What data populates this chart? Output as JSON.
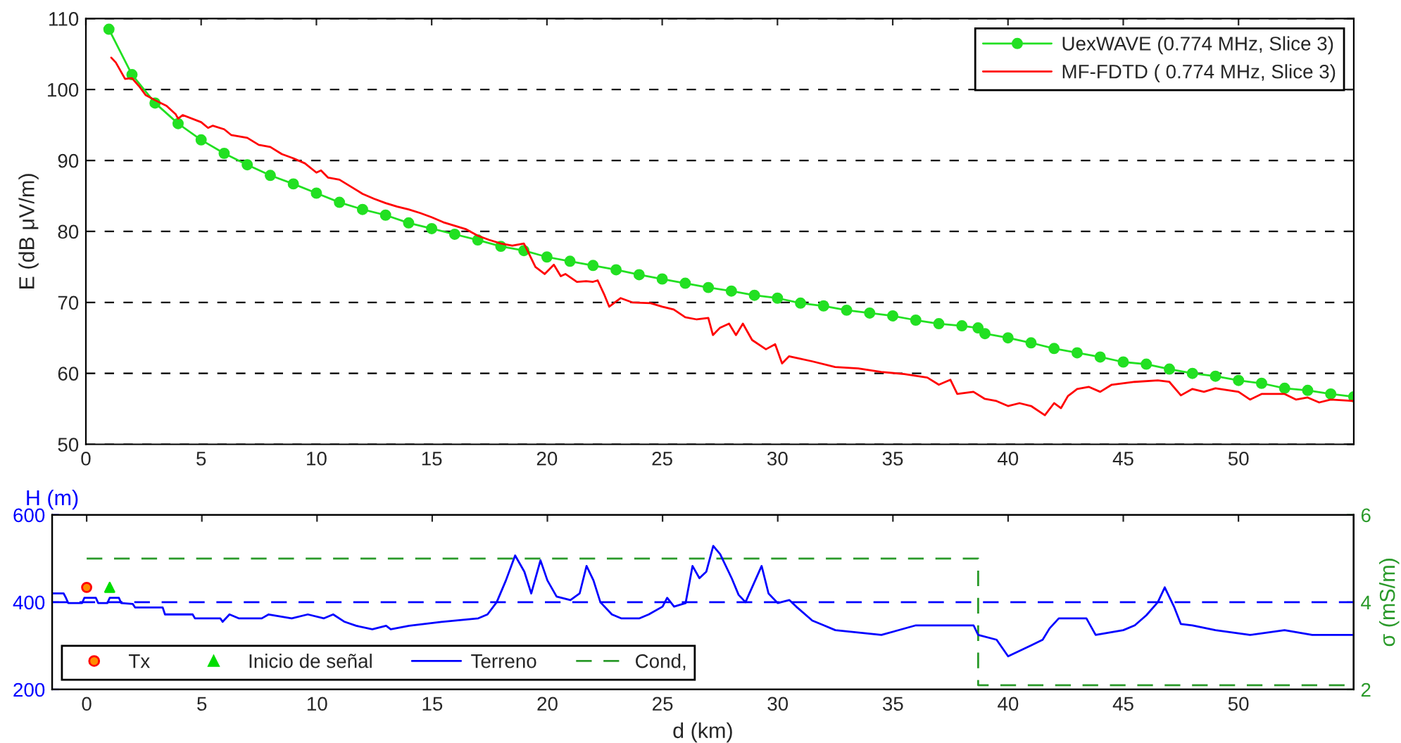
{
  "chart_data": [
    {
      "type": "line",
      "ylabel": "E (dB μV/m)",
      "xlim": [
        0,
        55
      ],
      "ylim": [
        50,
        110
      ],
      "xticks": [
        0,
        5,
        10,
        15,
        20,
        25,
        30,
        35,
        40,
        45,
        50
      ],
      "yticks": [
        50,
        60,
        70,
        80,
        90,
        100,
        110
      ],
      "grid": "y",
      "legend": "top right",
      "series": [
        {
          "name": "UexWAVE (0.774 MHz, Slice 3)",
          "color": "#22e022",
          "marker": "circle",
          "x": [
            1,
            2,
            3,
            4,
            5,
            6,
            7,
            8,
            9,
            10,
            11,
            12,
            13,
            14,
            15,
            16,
            17,
            18,
            19,
            20,
            21,
            22,
            23,
            24,
            25,
            26,
            27,
            28,
            29,
            30,
            31,
            32,
            33,
            34,
            35,
            36,
            37,
            38,
            38.7,
            39,
            40,
            41,
            42,
            43,
            44,
            45,
            46,
            47,
            48,
            49,
            50,
            51,
            52,
            53,
            54,
            55
          ],
          "values": [
            108.5,
            102.1,
            98.1,
            95.2,
            92.9,
            91.0,
            89.4,
            87.9,
            86.7,
            85.4,
            84.1,
            83.1,
            82.3,
            81.2,
            80.4,
            79.6,
            78.8,
            77.9,
            77.3,
            76.4,
            75.8,
            75.2,
            74.6,
            73.9,
            73.3,
            72.7,
            72.1,
            71.6,
            71.0,
            70.6,
            69.9,
            69.5,
            68.9,
            68.5,
            68.1,
            67.5,
            67.0,
            66.7,
            66.4,
            65.6,
            65.0,
            64.3,
            63.5,
            62.9,
            62.3,
            61.6,
            61.3,
            60.6,
            60.0,
            59.6,
            59.0,
            58.6,
            57.9,
            57.6,
            57.1,
            56.7
          ]
        },
        {
          "name": "MF-FDTD ( 0.774 MHz, Slice 3)",
          "color": "#ff0000",
          "marker": "none",
          "x": [
            1.1,
            1.3,
            1.7,
            2.0,
            2.3,
            2.6,
            3.0,
            3.5,
            3.9,
            4.0,
            4.2,
            5.0,
            5.3,
            5.5,
            6.0,
            6.3,
            7.0,
            7.5,
            8.0,
            8.5,
            9.0,
            9.5,
            10.0,
            10.2,
            10.5,
            11.0,
            11.5,
            12.0,
            12.5,
            13.0,
            13.5,
            14.0,
            14.5,
            15.0,
            15.5,
            16.0,
            16.5,
            17.0,
            17.5,
            18.0,
            18.5,
            19.0,
            19.2,
            19.5,
            19.9,
            20.3,
            20.6,
            20.8,
            21.3,
            21.7,
            22.0,
            22.2,
            22.5,
            22.7,
            23.2,
            23.7,
            24.5,
            25.0,
            25.5,
            26.0,
            26.5,
            27.0,
            27.2,
            27.5,
            27.9,
            28.2,
            28.5,
            28.9,
            29.5,
            29.9,
            30.2,
            30.5,
            31.5,
            32.5,
            33.5,
            34.5,
            35.5,
            36.5,
            37.0,
            37.5,
            37.8,
            38.5,
            39.0,
            39.5,
            40.0,
            40.5,
            41.0,
            41.6,
            42.0,
            42.3,
            42.6,
            43.0,
            43.5,
            44.0,
            44.5,
            45.5,
            46.5,
            47.0,
            47.5,
            48.0,
            48.5,
            49.0,
            50.0,
            50.5,
            51.0,
            52.0,
            52.5,
            53.0,
            53.5,
            54.0,
            55.0
          ],
          "values": [
            104.5,
            103.8,
            101.5,
            101.6,
            100.5,
            99.2,
            98.5,
            97.7,
            96.5,
            95.9,
            96.4,
            95.4,
            94.6,
            94.9,
            94.4,
            93.6,
            93.2,
            92.2,
            91.9,
            90.9,
            90.3,
            89.6,
            88.3,
            88.6,
            87.6,
            87.3,
            86.3,
            85.3,
            84.6,
            84.0,
            83.5,
            83.1,
            82.6,
            82.0,
            81.3,
            80.8,
            80.3,
            79.4,
            78.8,
            78.3,
            78.0,
            78.3,
            77.0,
            75.0,
            74.0,
            75.3,
            73.7,
            74.0,
            72.9,
            73.0,
            72.9,
            73.1,
            71.0,
            69.4,
            70.6,
            70.0,
            69.9,
            69.4,
            69.0,
            67.9,
            67.6,
            67.8,
            65.4,
            66.4,
            67.0,
            65.4,
            67.0,
            64.7,
            63.4,
            64.1,
            61.4,
            62.4,
            61.7,
            60.9,
            60.7,
            60.2,
            59.9,
            59.4,
            58.4,
            59.1,
            57.1,
            57.4,
            56.4,
            56.1,
            55.4,
            55.8,
            55.4,
            54.1,
            55.8,
            55.1,
            56.8,
            57.8,
            58.1,
            57.4,
            58.4,
            58.8,
            59.0,
            58.8,
            56.9,
            57.8,
            57.4,
            57.9,
            57.4,
            56.3,
            57.1,
            57.1,
            56.3,
            56.6,
            55.9,
            56.3,
            56.1
          ]
        }
      ]
    },
    {
      "type": "line",
      "xlabel": "d (km)",
      "ylabel": "H (m)",
      "y2label": "σ (mS/m)",
      "xlim": [
        -1.5,
        55
      ],
      "ylim": [
        200,
        600
      ],
      "y2lim": [
        2,
        6
      ],
      "xticks": [
        0,
        5,
        10,
        15,
        20,
        25,
        30,
        35,
        40,
        45,
        50
      ],
      "yticks": [
        200,
        400,
        600
      ],
      "y2ticks": [
        2,
        4,
        6
      ],
      "legend": "bottom left",
      "ref_lines": [
        {
          "axis": "y",
          "value": 400,
          "color": "#0000ff",
          "line_style": "dashed"
        }
      ],
      "series": [
        {
          "name": "Tx",
          "type": "scatter",
          "color": "#ff8c00",
          "marker": "circle",
          "x": [
            0
          ],
          "values": [
            434
          ]
        },
        {
          "name": "Inicio de señal",
          "type": "scatter",
          "color": "#00dd00",
          "marker": "triangle",
          "x": [
            1
          ],
          "values": [
            434
          ]
        },
        {
          "name": "Terreno",
          "type": "line",
          "color": "#0000ff",
          "marker": "none",
          "x": [
            -1.5,
            -1.0,
            -0.9,
            -0.8,
            -0.2,
            -0.1,
            0.4,
            0.5,
            0.9,
            1.0,
            1.4,
            1.5,
            2.0,
            2.1,
            3.3,
            3.4,
            4.6,
            4.7,
            5.8,
            5.9,
            6.2,
            6.6,
            7.6,
            7.9,
            8.9,
            9.6,
            10.3,
            10.7,
            11.2,
            11.7,
            12.4,
            13.0,
            13.2,
            14.0,
            15.4,
            17.0,
            17.4,
            17.8,
            18.2,
            18.6,
            19.0,
            19.3,
            19.7,
            20.0,
            20.4,
            21.0,
            21.4,
            21.7,
            22.0,
            22.3,
            22.8,
            23.2,
            24.0,
            24.4,
            25.0,
            25.2,
            25.5,
            26.0,
            26.3,
            26.6,
            26.9,
            27.2,
            27.5,
            28.0,
            28.3,
            28.6,
            29.3,
            29.6,
            30.0,
            30.5,
            30.8,
            31.5,
            32.0,
            32.5,
            34.5,
            36.0,
            38.5,
            38.7,
            39.5,
            40.0,
            41.0,
            41.5,
            41.8,
            42.2,
            43.4,
            43.8,
            45.0,
            45.5,
            46.0,
            46.5,
            46.8,
            47.2,
            47.5,
            48.0,
            49.0,
            50.5,
            52.0,
            53.2,
            55.0
          ],
          "values": [
            420,
            420,
            410,
            398,
            398,
            410,
            410,
            398,
            398,
            410,
            410,
            398,
            396,
            388,
            388,
            372,
            372,
            363,
            363,
            355,
            372,
            363,
            363,
            372,
            363,
            372,
            363,
            372,
            355,
            346,
            338,
            346,
            338,
            346,
            355,
            363,
            372,
            400,
            450,
            507,
            470,
            420,
            496,
            450,
            413,
            405,
            420,
            483,
            450,
            400,
            372,
            363,
            363,
            372,
            390,
            410,
            390,
            398,
            483,
            455,
            470,
            529,
            510,
            455,
            417,
            400,
            483,
            420,
            398,
            405,
            390,
            358,
            347,
            336,
            325,
            347,
            347,
            325,
            314,
            276,
            301,
            314,
            340,
            363,
            363,
            325,
            336,
            347,
            370,
            400,
            434,
            390,
            350,
            347,
            336,
            325,
            336,
            325,
            325
          ]
        },
        {
          "name": "Cond,",
          "type": "line",
          "axis": "y2",
          "color": "#2a9a2a",
          "marker": "none",
          "line_style": "dashed",
          "x": [
            0,
            38.7,
            38.7,
            55
          ],
          "values": [
            5,
            5,
            2.1,
            2.1
          ]
        }
      ]
    }
  ]
}
